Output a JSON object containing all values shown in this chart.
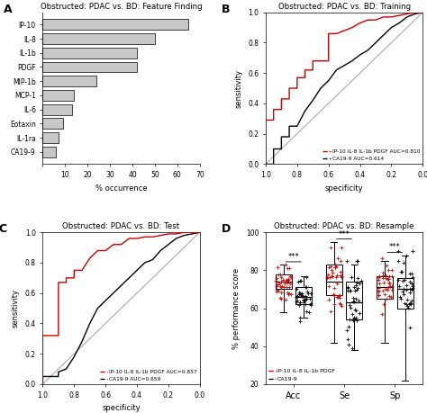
{
  "panel_A": {
    "title": "Obstructed: PDAC vs. BD: Feature Finding",
    "categories": [
      "IP-10",
      "IL-8",
      "IL-1b",
      "PDGF",
      "MIP-1b",
      "MCP-1",
      "IL-6",
      "Eotaxin",
      "IL-1ra",
      "CA19-9"
    ],
    "values": [
      65,
      50,
      42,
      42,
      24,
      14,
      13,
      9,
      7,
      6
    ],
    "bar_color": "#c8c8c8",
    "xlabel": "% occurrence",
    "xlim": [
      0,
      70
    ],
    "xticks": [
      0,
      10,
      20,
      30,
      40,
      50,
      60,
      70
    ]
  },
  "panel_B": {
    "title": "Obstructed: PDAC vs. BD: Training",
    "red_label": "IP-10 IL-8 IL-1b PDGF AUC=0.810",
    "black_label": "CA19-9 AUC=0.614",
    "red_x": [
      1.0,
      1.0,
      0.95,
      0.95,
      0.9,
      0.9,
      0.85,
      0.85,
      0.8,
      0.8,
      0.75,
      0.75,
      0.7,
      0.7,
      0.65,
      0.6,
      0.6,
      0.55,
      0.5,
      0.45,
      0.4,
      0.35,
      0.3,
      0.25,
      0.2,
      0.15,
      0.1,
      0.05,
      0.0
    ],
    "red_y": [
      0.0,
      0.29,
      0.29,
      0.36,
      0.36,
      0.43,
      0.43,
      0.5,
      0.5,
      0.57,
      0.57,
      0.62,
      0.62,
      0.68,
      0.68,
      0.68,
      0.86,
      0.86,
      0.88,
      0.9,
      0.93,
      0.95,
      0.95,
      0.97,
      0.97,
      0.98,
      0.99,
      1.0,
      1.0
    ],
    "black_x": [
      1.0,
      1.0,
      0.95,
      0.95,
      0.9,
      0.9,
      0.85,
      0.85,
      0.8,
      0.75,
      0.7,
      0.65,
      0.6,
      0.55,
      0.5,
      0.45,
      0.4,
      0.35,
      0.3,
      0.25,
      0.2,
      0.15,
      0.1,
      0.05,
      0.0
    ],
    "black_y": [
      0.0,
      0.0,
      0.0,
      0.1,
      0.1,
      0.18,
      0.18,
      0.25,
      0.25,
      0.35,
      0.42,
      0.5,
      0.55,
      0.62,
      0.65,
      0.68,
      0.72,
      0.75,
      0.8,
      0.85,
      0.9,
      0.93,
      0.97,
      0.99,
      1.0
    ]
  },
  "panel_C": {
    "title": "Obstructed: PDAC vs. BD: Test",
    "red_label": "IP-10 IL-8 IL-1b PDGF AUC=0.857",
    "black_label": "CA19-9 AUC=0.659",
    "red_x": [
      1.0,
      1.0,
      0.9,
      0.9,
      0.85,
      0.85,
      0.8,
      0.8,
      0.75,
      0.7,
      0.65,
      0.6,
      0.55,
      0.5,
      0.45,
      0.4,
      0.35,
      0.3,
      0.25,
      0.2,
      0.15,
      0.1,
      0.05,
      0.0
    ],
    "red_y": [
      0.0,
      0.32,
      0.32,
      0.67,
      0.67,
      0.7,
      0.7,
      0.75,
      0.75,
      0.83,
      0.88,
      0.88,
      0.92,
      0.92,
      0.96,
      0.96,
      0.97,
      0.97,
      0.98,
      0.99,
      0.99,
      1.0,
      1.0,
      1.0
    ],
    "black_x": [
      1.0,
      1.0,
      0.9,
      0.9,
      0.85,
      0.8,
      0.75,
      0.7,
      0.65,
      0.6,
      0.55,
      0.5,
      0.45,
      0.4,
      0.35,
      0.3,
      0.25,
      0.2,
      0.15,
      0.1,
      0.05,
      0.0
    ],
    "black_y": [
      0.0,
      0.05,
      0.05,
      0.08,
      0.1,
      0.18,
      0.28,
      0.4,
      0.5,
      0.55,
      0.6,
      0.65,
      0.7,
      0.75,
      0.8,
      0.82,
      0.88,
      0.92,
      0.96,
      0.98,
      0.99,
      1.0
    ]
  },
  "panel_D": {
    "title": "Obstructed: PDAC vs. BD: Resample",
    "red_label": "IP-10 IL-8 IL-1b PDGF",
    "black_label": "CA19-9",
    "groups": [
      "Acc",
      "Se",
      "Sp"
    ],
    "red_medians": [
      74,
      74,
      71
    ],
    "black_medians": [
      66,
      63,
      70
    ],
    "red_q1": [
      70,
      67,
      65
    ],
    "red_q3": [
      78,
      83,
      77
    ],
    "black_q1": [
      62,
      54,
      60
    ],
    "black_q3": [
      71,
      74,
      76
    ],
    "red_whisker_low": [
      58,
      42,
      42
    ],
    "red_whisker_high": [
      83,
      95,
      85
    ],
    "black_whisker_low": [
      55,
      38,
      22
    ],
    "black_whisker_high": [
      77,
      83,
      88
    ],
    "ylabel": "% performance score",
    "ylim": [
      20,
      100
    ],
    "yticks": [
      20,
      40,
      60,
      80,
      100
    ]
  },
  "bg_color": "#ffffff",
  "red_color": "#cc0000",
  "black_color": "#000000",
  "gray_color": "#c8c8c8"
}
